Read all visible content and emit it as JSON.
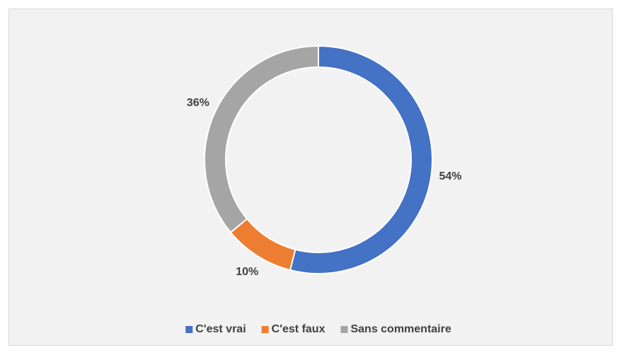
{
  "chart_data": {
    "type": "donut",
    "categories": [
      "C'est vrai",
      "C'est faux",
      "Sans commentaire"
    ],
    "values": [
      54,
      10,
      36
    ],
    "value_labels": [
      "54%",
      "10%",
      "36%"
    ],
    "colors": [
      "#4472c4",
      "#ed7d31",
      "#a5a5a5"
    ],
    "legend": "bottom"
  }
}
